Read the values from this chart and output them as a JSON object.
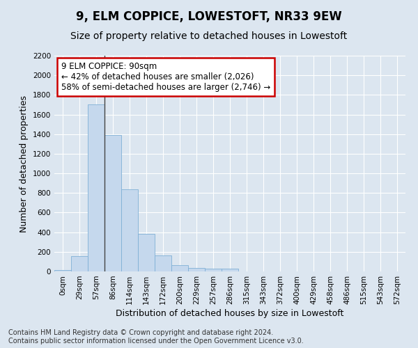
{
  "title": "9, ELM COPPICE, LOWESTOFT, NR33 9EW",
  "subtitle": "Size of property relative to detached houses in Lowestoft",
  "xlabel": "Distribution of detached houses by size in Lowestoft",
  "ylabel": "Number of detached properties",
  "categories": [
    "0sqm",
    "29sqm",
    "57sqm",
    "86sqm",
    "114sqm",
    "143sqm",
    "172sqm",
    "200sqm",
    "229sqm",
    "257sqm",
    "286sqm",
    "315sqm",
    "343sqm",
    "372sqm",
    "400sqm",
    "429sqm",
    "458sqm",
    "486sqm",
    "515sqm",
    "543sqm",
    "572sqm"
  ],
  "bar_values": [
    15,
    155,
    1700,
    1390,
    835,
    385,
    165,
    65,
    35,
    28,
    25,
    0,
    0,
    0,
    0,
    0,
    0,
    0,
    0,
    0,
    0
  ],
  "bar_color": "#c5d8ed",
  "bar_edge_color": "#7fb0d5",
  "ylim": [
    0,
    2200
  ],
  "yticks": [
    0,
    200,
    400,
    600,
    800,
    1000,
    1200,
    1400,
    1600,
    1800,
    2000,
    2200
  ],
  "annotation_text": "9 ELM COPPICE: 90sqm\n← 42% of detached houses are smaller (2,026)\n58% of semi-detached houses are larger (2,746) →",
  "annotation_box_color": "#ffffff",
  "annotation_border_color": "#cc0000",
  "background_color": "#dce6f0",
  "plot_bg_color": "#dce6f0",
  "footer_line1": "Contains HM Land Registry data © Crown copyright and database right 2024.",
  "footer_line2": "Contains public sector information licensed under the Open Government Licence v3.0.",
  "title_fontsize": 12,
  "subtitle_fontsize": 10,
  "xlabel_fontsize": 9,
  "ylabel_fontsize": 9,
  "tick_fontsize": 7.5,
  "footer_fontsize": 7,
  "vline_x": 2.5,
  "vline_color": "#444444"
}
